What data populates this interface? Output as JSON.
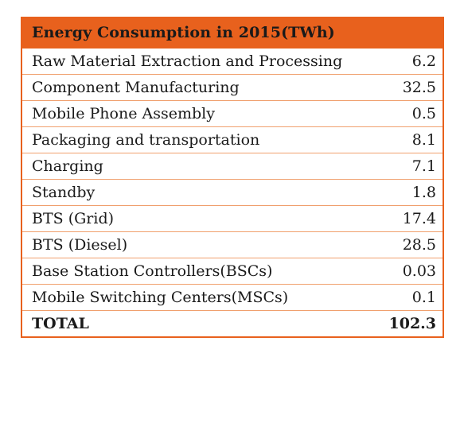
{
  "table": {
    "title": "Energy Consumption in 2015(TWh)",
    "rows": [
      {
        "label": "Raw Material Extraction and Processing",
        "value": "6.2"
      },
      {
        "label": "Component Manufacturing",
        "value": "32.5"
      },
      {
        "label": "Mobile Phone Assembly",
        "value": "0.5"
      },
      {
        "label": "Packaging and transportation",
        "value": "8.1"
      },
      {
        "label": "Charging",
        "value": "7.1"
      },
      {
        "label": "Standby",
        "value": "1.8"
      },
      {
        "label": "BTS (Grid)",
        "value": "17.4"
      },
      {
        "label": "BTS (Diesel)",
        "value": "28.5"
      },
      {
        "label": "Base Station Controllers(BSCs)",
        "value": "0.03"
      },
      {
        "label": "Mobile Switching Centers(MSCs)",
        "value": "0.1"
      }
    ],
    "total": {
      "label": "TOTAL",
      "value": "102.3"
    }
  },
  "colors": {
    "header_background": "#e8611d",
    "border": "#e8611d"
  }
}
